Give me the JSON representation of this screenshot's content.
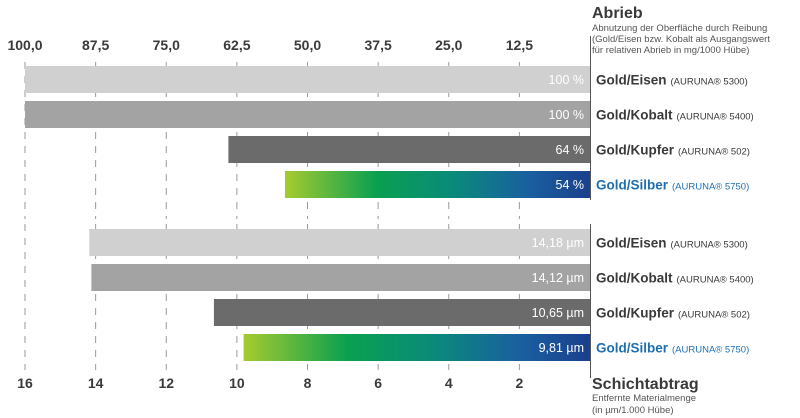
{
  "chart_data": [
    {
      "type": "bar",
      "orientation": "horizontal",
      "title": "Abrieb",
      "subtitle": [
        "Abnutzung der Oberfläche durch Reibung",
        "(Gold/Eisen bzw. Kobalt als Ausgangswert",
        "für relativen Abrieb in mg/1000 Hübe)"
      ],
      "ticks": [
        "100,0",
        "87,5",
        "75,0",
        "62,5",
        "50,0",
        "37,5",
        "25,0",
        "12,5"
      ],
      "tick_values": [
        100,
        87.5,
        75,
        62.5,
        50,
        37.5,
        25,
        12.5
      ],
      "xlim": [
        0,
        100
      ],
      "reversed": true,
      "axis_position": "top",
      "grid": "dashed vertical",
      "bars": [
        {
          "category": "Gold/Eisen",
          "product": "(AURUNA® 5300)",
          "value": 100,
          "label": "100 %",
          "color": "#d0d0d0",
          "highlight": false
        },
        {
          "category": "Gold/Kobalt",
          "product": "(AURUNA® 5400)",
          "value": 100,
          "label": "100 %",
          "color": "#a3a3a3",
          "highlight": false
        },
        {
          "category": "Gold/Kupfer",
          "product": "(AURUNA® 502)",
          "value": 64,
          "label": "64 %",
          "color": "#6b6b6b",
          "highlight": false
        },
        {
          "category": "Gold/Silber",
          "product": "(AURUNA® 5750)",
          "value": 54,
          "label": "54 %",
          "gradient": [
            "#a6cb2e",
            "#0aa050",
            "#0a8a7a",
            "#1a5fa0",
            "#1b3f8c"
          ],
          "highlight": true
        }
      ]
    },
    {
      "type": "bar",
      "orientation": "horizontal",
      "title": "Schichtabtrag",
      "subtitle": [
        "Entfernte Materialmenge",
        "(in µm/1.000 Hübe)"
      ],
      "ticks": [
        "16",
        "14",
        "12",
        "10",
        "8",
        "6",
        "4",
        "2"
      ],
      "tick_values": [
        16,
        14,
        12,
        10,
        8,
        6,
        4,
        2
      ],
      "xlim": [
        0,
        16
      ],
      "reversed": true,
      "axis_position": "bottom",
      "grid": "dashed vertical",
      "bars": [
        {
          "category": "Gold/Eisen",
          "product": "(AURUNA® 5300)",
          "value": 14.18,
          "label": "14,18 µm",
          "color": "#d0d0d0",
          "highlight": false
        },
        {
          "category": "Gold/Kobalt",
          "product": "(AURUNA® 5400)",
          "value": 14.12,
          "label": "14,12 µm",
          "color": "#a3a3a3",
          "highlight": false
        },
        {
          "category": "Gold/Kupfer",
          "product": "(AURUNA® 502)",
          "value": 10.65,
          "label": "10,65 µm",
          "color": "#6b6b6b",
          "highlight": false
        },
        {
          "category": "Gold/Silber",
          "product": "(AURUNA® 5750)",
          "value": 9.81,
          "label": "9,81 µm",
          "gradient": [
            "#a6cb2e",
            "#0aa050",
            "#0a8a7a",
            "#1a5fa0",
            "#1b3f8c"
          ],
          "highlight": true
        }
      ]
    }
  ],
  "colors": {
    "text": "#3a3a3a",
    "highlight_text": "#1f6fb0",
    "grid": "#9a9a9a",
    "axis": "#555555"
  }
}
